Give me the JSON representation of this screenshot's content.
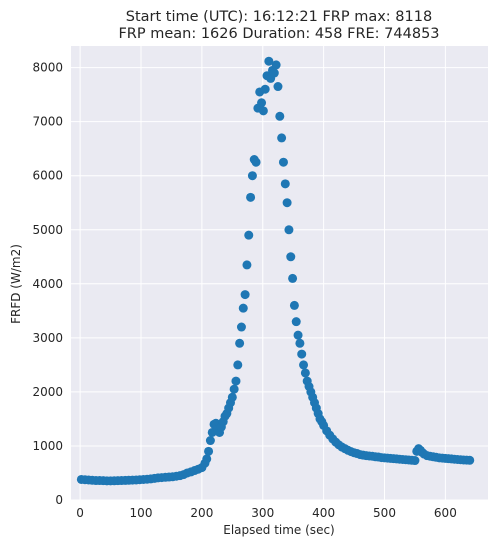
{
  "chart_data": {
    "type": "scatter",
    "title_lines": [
      "Start time (UTC): 16:12:21 FRP max: 8118",
      "FRP mean: 1626 Duration: 458 FRE: 744853"
    ],
    "xlabel": "Elapsed time (sec)",
    "ylabel": "FRFD (W/m2)",
    "xlim": [
      -15,
      670
    ],
    "ylim": [
      0,
      8400
    ],
    "xticks": [
      0,
      100,
      200,
      300,
      400,
      500,
      600
    ],
    "yticks": [
      0,
      1000,
      2000,
      3000,
      4000,
      5000,
      6000,
      7000,
      8000
    ],
    "grid": true,
    "background": "#eaeaf2",
    "marker_color": "#1f77b4",
    "series": [
      {
        "x": [
          2,
          8,
          14,
          20,
          26,
          32,
          38,
          44,
          50,
          56,
          62,
          68,
          74,
          80,
          86,
          92,
          98,
          104,
          110,
          116,
          122,
          128,
          134,
          140,
          146,
          152,
          158,
          164,
          170,
          176,
          182,
          188,
          194,
          200,
          205,
          208,
          211,
          214,
          217,
          220,
          223,
          226,
          229,
          232,
          235,
          238,
          241,
          244,
          247,
          250,
          253,
          256,
          259,
          262,
          265,
          268,
          271,
          274,
          277,
          280,
          283,
          286,
          289,
          292,
          295,
          298,
          301,
          304,
          307,
          310,
          313,
          316,
          319,
          322,
          325,
          328,
          331,
          334,
          337,
          340,
          343,
          346,
          349,
          352,
          355,
          358,
          361,
          364,
          367,
          370,
          373,
          376,
          379,
          382,
          385,
          388,
          391,
          394,
          397,
          400,
          405,
          410,
          415,
          420,
          425,
          430,
          435,
          440,
          445,
          450,
          455,
          460,
          465,
          470,
          475,
          480,
          485,
          490,
          495,
          500,
          505,
          510,
          515,
          520,
          525,
          530,
          535,
          540,
          545,
          550,
          553,
          556,
          559,
          562,
          565,
          570,
          575,
          580,
          585,
          590,
          595,
          600,
          605,
          610,
          615,
          620,
          625,
          630,
          635,
          640
        ],
        "y": [
          380,
          375,
          370,
          365,
          360,
          360,
          358,
          355,
          355,
          356,
          358,
          360,
          362,
          365,
          368,
          370,
          375,
          380,
          385,
          390,
          400,
          410,
          415,
          420,
          425,
          430,
          440,
          450,
          470,
          500,
          520,
          545,
          570,
          600,
          680,
          760,
          900,
          1100,
          1250,
          1400,
          1420,
          1300,
          1250,
          1350,
          1450,
          1550,
          1600,
          1700,
          1800,
          1900,
          2050,
          2200,
          2500,
          2900,
          3200,
          3550,
          3800,
          4350,
          4900,
          5600,
          6000,
          6300,
          6250,
          7250,
          7550,
          7350,
          7200,
          7600,
          7850,
          8118,
          7800,
          7950,
          7900,
          8050,
          7650,
          7100,
          6700,
          6250,
          5850,
          5500,
          5000,
          4500,
          4100,
          3600,
          3300,
          3050,
          2900,
          2700,
          2500,
          2350,
          2200,
          2100,
          2000,
          1900,
          1800,
          1700,
          1600,
          1500,
          1450,
          1380,
          1280,
          1200,
          1130,
          1070,
          1020,
          980,
          950,
          920,
          895,
          875,
          860,
          840,
          830,
          820,
          815,
          810,
          800,
          795,
          785,
          780,
          775,
          770,
          765,
          760,
          755,
          750,
          745,
          740,
          735,
          730,
          900,
          950,
          920,
          880,
          850,
          820,
          810,
          800,
          790,
          780,
          775,
          770,
          765,
          760,
          755,
          750,
          745,
          740,
          738,
          735
        ]
      }
    ]
  }
}
